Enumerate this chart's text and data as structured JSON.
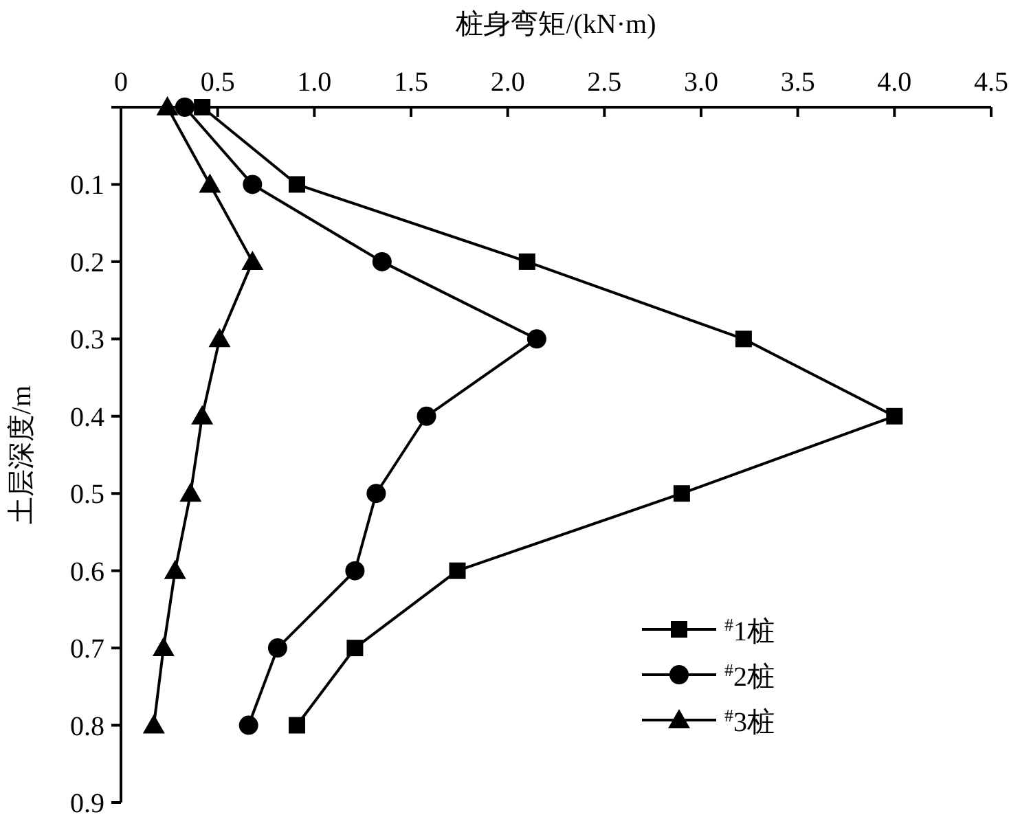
{
  "chart_data": {
    "type": "line",
    "xlabel": "桩身弯矩/(kN·m)",
    "ylabel": "土层深度/m",
    "xlim": [
      0,
      4.5
    ],
    "xticks": [
      0,
      0.5,
      {
        "value": 1,
        "label": "1.0"
      },
      1.5,
      {
        "value": 2,
        "label": "2.0"
      },
      2.5,
      {
        "value": 3,
        "label": "3.0"
      },
      3.5,
      {
        "value": 4,
        "label": "4.0"
      },
      4.5
    ],
    "ylim": [
      0.9,
      0
    ],
    "yticks": [
      {
        "value": 0,
        "label": null
      },
      0.1,
      0.2,
      0.3,
      0.4,
      0.5,
      0.6,
      0.7,
      0.8,
      0.9
    ],
    "legend": "bottom right",
    "line_style": "solid",
    "series": [
      {
        "name": "$^{#}$1桩",
        "color": "#000000",
        "marker": "square",
        "x": [
          0.42,
          0.91,
          2.1,
          3.22,
          4.0,
          2.9,
          1.74,
          1.21,
          0.91
        ],
        "values": [
          0,
          0.1,
          0.2,
          0.3,
          0.4,
          0.5,
          0.6,
          0.7,
          0.8
        ]
      },
      {
        "name": "$^{#}$2桩",
        "color": "#000000",
        "marker": "circle",
        "x": [
          0.33,
          0.68,
          1.35,
          2.15,
          1.58,
          1.32,
          1.21,
          0.81,
          0.66
        ],
        "values": [
          0,
          0.1,
          0.2,
          0.3,
          0.4,
          0.5,
          0.6,
          0.7,
          0.8
        ]
      },
      {
        "name": "$^{#}$3桩",
        "color": "#000000",
        "marker": "triangle",
        "x": [
          0.24,
          0.46,
          0.68,
          0.51,
          0.42,
          0.36,
          0.28,
          0.22,
          0.17
        ],
        "values": [
          0,
          0.1,
          0.2,
          0.3,
          0.4,
          0.5,
          0.6,
          0.7,
          0.8
        ]
      }
    ]
  }
}
